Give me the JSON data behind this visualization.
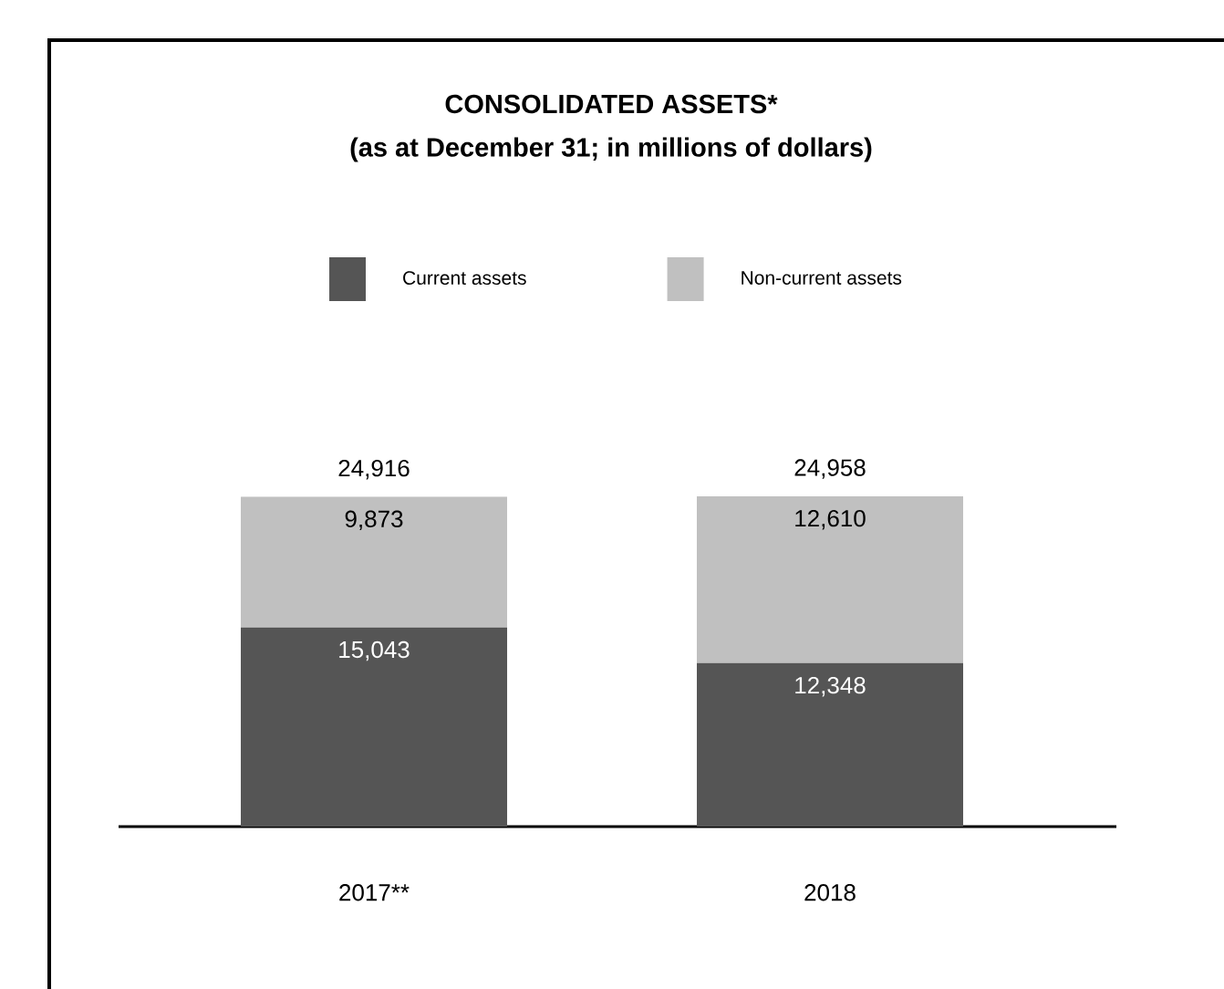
{
  "chart_data": {
    "type": "bar",
    "stacked": true,
    "title": "CONSOLIDATED ASSETS*",
    "subtitle": "(as at December 31; in millions of dollars)",
    "categories": [
      "2017**",
      "2018"
    ],
    "series": [
      {
        "name": "Current assets",
        "color": "#555555",
        "values": [
          15043,
          12348
        ],
        "value_labels": [
          "15,043",
          "12,348"
        ]
      },
      {
        "name": "Non-current assets",
        "color": "#c0c0c0",
        "values": [
          9873,
          12610
        ],
        "value_labels": [
          "9,873",
          "12,610"
        ]
      }
    ],
    "totals": [
      "24,916",
      "24,958"
    ],
    "legend": "top",
    "relative": false
  }
}
